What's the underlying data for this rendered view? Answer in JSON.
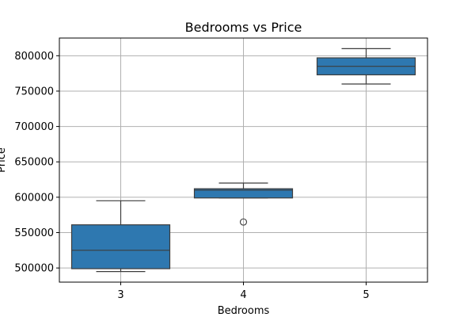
{
  "chart_data": {
    "type": "box",
    "title": "Bedrooms vs Price",
    "xlabel": "Bedrooms",
    "ylabel": "Price",
    "categories": [
      "3",
      "4",
      "5"
    ],
    "ylim": [
      480000,
      825000
    ],
    "yticks": [
      500000,
      550000,
      600000,
      650000,
      700000,
      750000,
      800000
    ],
    "ytick_labels": [
      "500000",
      "550000",
      "600000",
      "650000",
      "700000",
      "750000",
      "800000"
    ],
    "grid": true,
    "box_color": "#2e78b0",
    "edge_color": "#3c3c3c",
    "boxes": [
      {
        "category": "3",
        "whisker_low": 495000,
        "q1": 499000,
        "median": 525000,
        "q3": 561000,
        "whisker_high": 595000,
        "outliers": []
      },
      {
        "category": "4",
        "whisker_low": 599000,
        "q1": 599000,
        "median": 610000,
        "q3": 612000,
        "whisker_high": 620000,
        "outliers": [
          565000
        ]
      },
      {
        "category": "5",
        "whisker_low": 760000,
        "q1": 773000,
        "median": 785000,
        "q3": 797000,
        "whisker_high": 810000,
        "outliers": []
      }
    ]
  }
}
